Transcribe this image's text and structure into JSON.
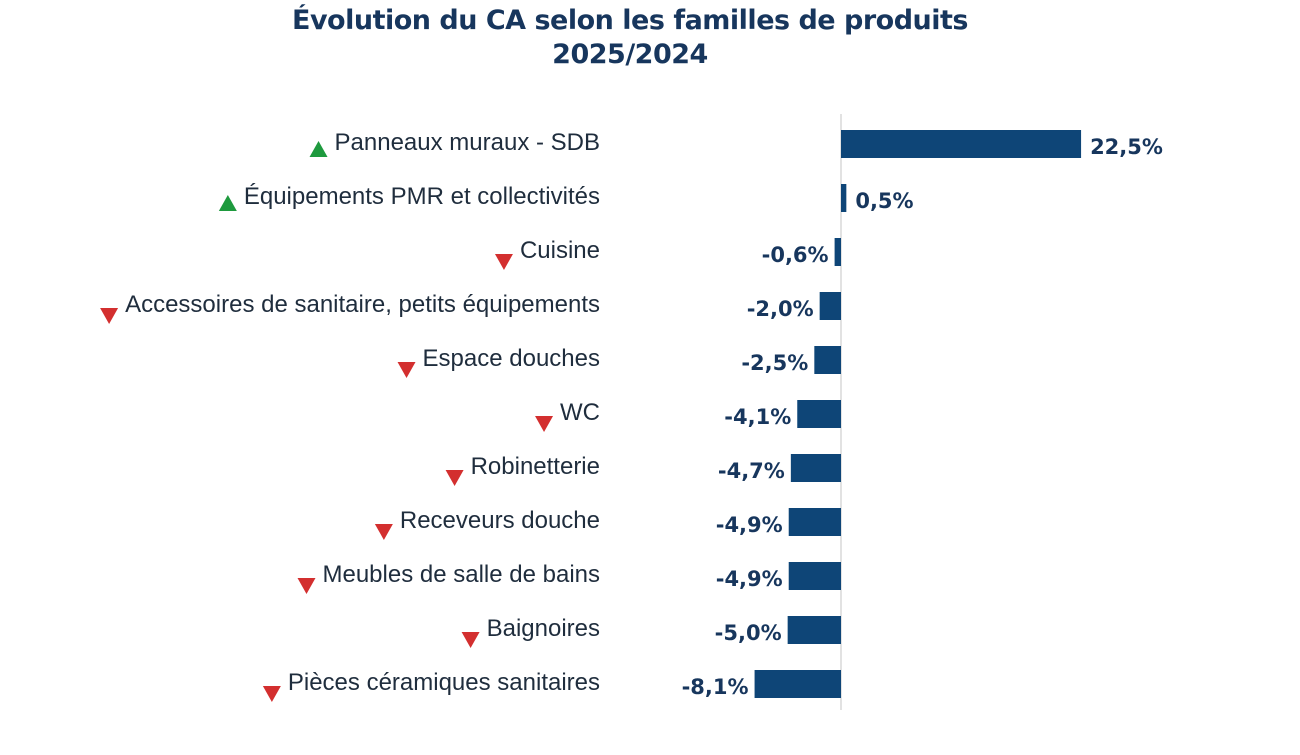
{
  "chart_data": {
    "type": "bar",
    "orientation": "horizontal",
    "title_lines": [
      "Évolution du CA selon les familles de produits",
      "2025/2024"
    ],
    "categories": [
      "Panneaux muraux - SDB",
      "Équipements PMR et collectivités",
      "Cuisine",
      "Accessoires de sanitaire, petits équipements",
      "Espace douches",
      "WC",
      "Robinetterie",
      "Receveurs douche",
      "Meubles de salle de bains",
      "Baignoires",
      "Pièces céramiques sanitaires"
    ],
    "values": [
      22.5,
      0.5,
      -0.6,
      -2.0,
      -2.5,
      -4.1,
      -4.7,
      -4.9,
      -4.9,
      -5.0,
      -8.1
    ],
    "value_labels": [
      "22,5%",
      "0,5%",
      "-0,6%",
      "-2,0%",
      "-2,5%",
      "-4,1%",
      "-4,7%",
      "-4,9%",
      "-4,9%",
      "-5,0%",
      "-8,1%"
    ],
    "trend_icons": [
      "up-triangle",
      "up-triangle",
      "down-triangle",
      "down-triangle",
      "down-triangle",
      "down-triangle",
      "down-triangle",
      "down-triangle",
      "down-triangle",
      "down-triangle",
      "down-triangle"
    ],
    "xlabel": "",
    "ylabel": "",
    "grid": false,
    "legend": "none",
    "colors": {
      "bar": "#0e4577",
      "up_icon": "#1e9a3e",
      "down_icon": "#d32f2f",
      "title": "#17365d",
      "value_text": "#17365d",
      "category_text": "#1f2d3d",
      "axis": "#d9d9d9"
    }
  }
}
